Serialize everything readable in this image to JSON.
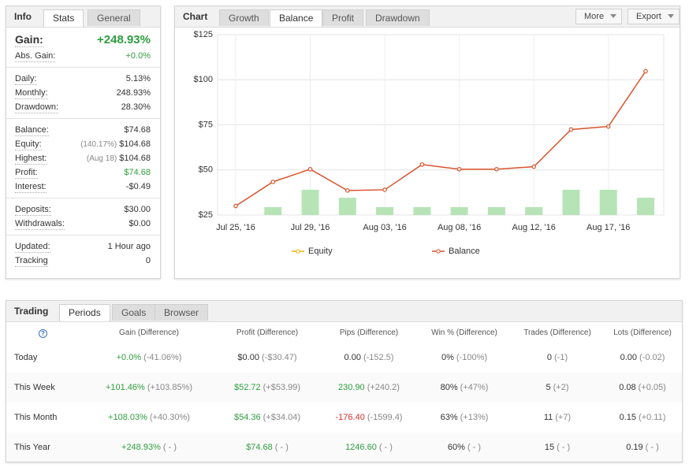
{
  "info": {
    "title": "Info",
    "tabs": [
      "Stats",
      "General"
    ],
    "active_tab": 0,
    "groups": [
      [
        {
          "label": "Gain:",
          "value": "+248.93%",
          "color": "green",
          "emphasis": true
        },
        {
          "label": "Abs. Gain:",
          "value": "+0.0%",
          "color": "green"
        }
      ],
      [
        {
          "label": "Daily:",
          "value": "5.13%"
        },
        {
          "label": "Monthly:",
          "value": "248.93%"
        },
        {
          "label": "Drawdown:",
          "value": "28.30%"
        }
      ],
      [
        {
          "label": "Balance:",
          "value": "$74.68"
        },
        {
          "label": "Equity:",
          "note": "(140.17%)",
          "value": "$104.68"
        },
        {
          "label": "Highest:",
          "note": "(Aug 18)",
          "value": "$104.68"
        },
        {
          "label": "Profit:",
          "value": "$74.68",
          "color": "green"
        },
        {
          "label": "Interest:",
          "value": "-$0.49"
        }
      ],
      [
        {
          "label": "Deposits:",
          "value": "$30.00"
        },
        {
          "label": "Withdrawals:",
          "value": "$0.00"
        }
      ],
      [
        {
          "label": "Updated:",
          "value": "1 Hour ago"
        },
        {
          "label": "Tracking",
          "value": "0"
        }
      ]
    ]
  },
  "chart_panel": {
    "title": "Chart",
    "tabs": [
      "Growth",
      "Balance",
      "Profit",
      "Drawdown"
    ],
    "active_tab": 1,
    "buttons": [
      "More",
      "Export"
    ]
  },
  "chart_data": {
    "type": "line",
    "categories": [
      "Jul 25, '16",
      null,
      "Jul 29, '16",
      null,
      "Aug 03, '16",
      null,
      "Aug 08, '16",
      null,
      "Aug 12, '16",
      null,
      "Aug 17, '16",
      null
    ],
    "series": [
      {
        "type": "bar",
        "color": "#b6e4b6",
        "values": [
          null,
          29.4,
          39,
          34.6,
          29.4,
          29.4,
          29.4,
          29.4,
          29.4,
          39,
          39,
          34.6
        ]
      },
      {
        "name": "Equity",
        "color": "#f0b400",
        "values": [
          null,
          null,
          null,
          null,
          null,
          null,
          null,
          null,
          null,
          null,
          null,
          null
        ]
      },
      {
        "name": "Balance",
        "color": "#d9532c",
        "values": [
          30,
          43.4,
          50.4,
          38.6,
          39,
          53,
          50.4,
          50.4,
          51.8,
          72.4,
          74.1,
          104.7
        ]
      }
    ],
    "ylim": [
      25,
      125
    ],
    "yticks": [
      {
        "value": 25,
        "label": "$25"
      },
      {
        "value": 50,
        "label": "$50"
      },
      {
        "value": 75,
        "label": "$75"
      },
      {
        "value": 100,
        "label": "$100"
      },
      {
        "value": 125,
        "label": "$125"
      }
    ],
    "grid": true,
    "legend": "bottom"
  },
  "trading": {
    "title": "Trading",
    "tabs": [
      "Periods",
      "Goals",
      "Browser"
    ],
    "active_tab": 0,
    "help": "?",
    "columns": [
      "Gain (Difference)",
      "Profit (Difference)",
      "Pips (Difference)",
      "Win % (Difference)",
      "Trades (Difference)",
      "Lots (Difference)"
    ],
    "rows": [
      {
        "period": "Today",
        "cells": [
          {
            "value": "+0.0%",
            "diff": "(-41.06%)",
            "color": "green"
          },
          {
            "value": "$0.00",
            "diff": "(-$30.47)"
          },
          {
            "value": "0.00",
            "diff": "(-152.5)"
          },
          {
            "value": "0%",
            "diff": "(-100%)"
          },
          {
            "value": "0",
            "diff": "(-1)"
          },
          {
            "value": "0.00",
            "diff": "(-0.02)"
          }
        ]
      },
      {
        "period": "This Week",
        "cells": [
          {
            "value": "+101.46%",
            "diff": "(+103.85%)",
            "color": "green"
          },
          {
            "value": "$52.72",
            "diff": "(+$53.99)",
            "color": "green"
          },
          {
            "value": "230.90",
            "diff": "(+240.2)",
            "color": "green"
          },
          {
            "value": "80%",
            "diff": "(+47%)"
          },
          {
            "value": "5",
            "diff": "(+2)"
          },
          {
            "value": "0.08",
            "diff": "(+0.05)"
          }
        ]
      },
      {
        "period": "This Month",
        "cells": [
          {
            "value": "+108.03%",
            "diff": "(+40.30%)",
            "color": "green"
          },
          {
            "value": "$54.36",
            "diff": "(+$34.04)",
            "color": "green"
          },
          {
            "value": "-176.40",
            "diff": "(-1599.4)",
            "color": "red"
          },
          {
            "value": "63%",
            "diff": "(+13%)"
          },
          {
            "value": "11",
            "diff": "(+7)"
          },
          {
            "value": "0.15",
            "diff": "(+0.11)"
          }
        ]
      },
      {
        "period": "This Year",
        "cells": [
          {
            "value": "+248.93%",
            "diff": "( - )",
            "color": "green"
          },
          {
            "value": "$74.68",
            "diff": "( - )",
            "color": "green"
          },
          {
            "value": "1246.60",
            "diff": "( - )",
            "color": "green"
          },
          {
            "value": "60%",
            "diff": "( - )"
          },
          {
            "value": "15",
            "diff": "( - )"
          },
          {
            "value": "0.19",
            "diff": "( - )"
          }
        ]
      }
    ]
  }
}
